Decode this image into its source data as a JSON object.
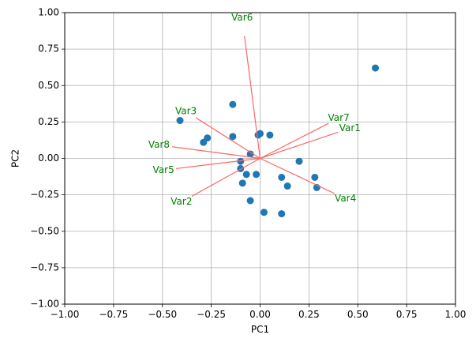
{
  "chart_data": {
    "type": "scatter",
    "title": "",
    "xlabel": "PC1",
    "ylabel": "PC2",
    "xlim": [
      -1.0,
      1.0
    ],
    "ylim": [
      -1.0,
      1.0
    ],
    "x_ticks": [
      -1.0,
      -0.75,
      -0.5,
      -0.25,
      0.0,
      0.25,
      0.5,
      0.75,
      1.0
    ],
    "y_ticks": [
      -1.0,
      -0.75,
      -0.5,
      -0.25,
      0.0,
      0.25,
      0.5,
      0.75,
      1.0
    ],
    "x_tick_labels": [
      "−1.00",
      "−0.75",
      "−0.50",
      "−0.25",
      "0.00",
      "0.25",
      "0.50",
      "0.75",
      "1.00"
    ],
    "y_tick_labels": [
      "−1.00",
      "−0.75",
      "−0.50",
      "−0.25",
      "0.00",
      "0.25",
      "0.50",
      "0.75",
      "1.00"
    ],
    "grid": true,
    "points": [
      {
        "x": 0.59,
        "y": 0.62
      },
      {
        "x": -0.41,
        "y": 0.26
      },
      {
        "x": -0.14,
        "y": 0.37
      },
      {
        "x": -0.27,
        "y": 0.14
      },
      {
        "x": -0.29,
        "y": 0.11
      },
      {
        "x": -0.14,
        "y": 0.15
      },
      {
        "x": -0.01,
        "y": 0.16
      },
      {
        "x": 0.0,
        "y": 0.17
      },
      {
        "x": 0.05,
        "y": 0.16
      },
      {
        "x": -0.05,
        "y": 0.03
      },
      {
        "x": -0.1,
        "y": -0.02
      },
      {
        "x": -0.1,
        "y": -0.07
      },
      {
        "x": -0.07,
        "y": -0.11
      },
      {
        "x": -0.02,
        "y": -0.11
      },
      {
        "x": -0.09,
        "y": -0.17
      },
      {
        "x": 0.11,
        "y": -0.13
      },
      {
        "x": 0.14,
        "y": -0.19
      },
      {
        "x": 0.2,
        "y": -0.02
      },
      {
        "x": 0.28,
        "y": -0.13
      },
      {
        "x": 0.29,
        "y": -0.2
      },
      {
        "x": -0.05,
        "y": -0.29
      },
      {
        "x": 0.02,
        "y": -0.37
      },
      {
        "x": 0.11,
        "y": -0.38
      }
    ],
    "point_color": "#1f77b4",
    "loadings": [
      {
        "name": "Var1",
        "x": 0.4,
        "y": 0.18
      },
      {
        "name": "Var2",
        "x": -0.35,
        "y": -0.26
      },
      {
        "name": "Var3",
        "x": -0.33,
        "y": 0.28
      },
      {
        "name": "Var4",
        "x": 0.38,
        "y": -0.24
      },
      {
        "name": "Var5",
        "x": -0.43,
        "y": -0.07
      },
      {
        "name": "Var6",
        "x": -0.08,
        "y": 0.84
      },
      {
        "name": "Var7",
        "x": 0.35,
        "y": 0.24
      },
      {
        "name": "Var8",
        "x": -0.45,
        "y": 0.08
      }
    ],
    "arrow_color": "#ff6666",
    "loading_label_color": "#008000"
  }
}
